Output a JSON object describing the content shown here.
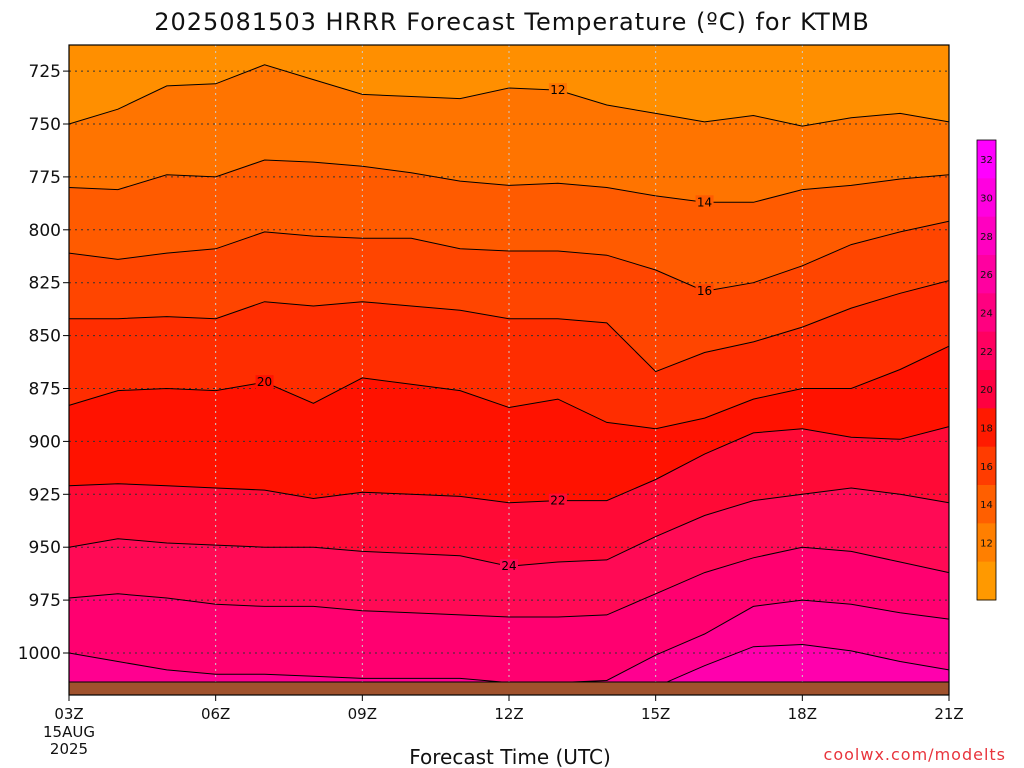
{
  "chart_data": {
    "type": "heatmap",
    "title": "2025081503 HRRR Forecast Temperature (ºC) for KTMB",
    "xlabel": "Forecast Time (UTC)",
    "ylabel": "",
    "credit": "coolwx.com/modelts",
    "x_ticks": [
      "03Z",
      "06Z",
      "09Z",
      "12Z",
      "15Z",
      "18Z",
      "21Z"
    ],
    "x_tick_hours": [
      3,
      6,
      9,
      12,
      15,
      18,
      21
    ],
    "x_date_lines": [
      "15AUG",
      "2025"
    ],
    "x_range_hours": [
      3,
      21
    ],
    "y_ticks": [
      725,
      750,
      775,
      800,
      825,
      850,
      875,
      900,
      925,
      950,
      975,
      1000
    ],
    "y_range_hpa": [
      712,
      1020
    ],
    "y_reversed": true,
    "grid": true,
    "colorbar": {
      "labels": [
        32,
        30,
        28,
        26,
        24,
        22,
        20,
        18,
        16,
        14,
        12
      ],
      "colors": [
        "#ff00ff",
        "#ff00e0",
        "#ff00c0",
        "#ff00a0",
        "#ff0080",
        "#ff0060",
        "#ff0040",
        "#ff1a00",
        "#ff3c00",
        "#ff5f00",
        "#ff7f00",
        "#ff9900"
      ]
    },
    "band_colors": [
      "#ff8f00",
      "#ff7400",
      "#ff5b00",
      "#ff4500",
      "#ff2d00",
      "#ff1200",
      "#ff0a36",
      "#ff0a55",
      "#ff0070",
      "#ff0090",
      "#ff00ad",
      "#ff00cc",
      "#ff00ff"
    ],
    "contour_levels": [
      11,
      12,
      14,
      16,
      18,
      20,
      22,
      24,
      26,
      28,
      30,
      32
    ],
    "isotherms": [
      {
        "level": 12,
        "p": [
          750,
          743,
          732,
          731,
          722,
          729,
          736,
          737,
          738,
          733,
          734,
          741,
          745,
          749,
          746,
          751,
          747,
          745,
          749
        ],
        "label_hour": 13
      },
      {
        "level": 14,
        "p": [
          780,
          781,
          774,
          775,
          767,
          768,
          770,
          773,
          777,
          779,
          778,
          780,
          784,
          787,
          787,
          781,
          779,
          776,
          774
        ],
        "label_hour": 16
      },
      {
        "level": 16,
        "p": [
          811,
          814,
          811,
          809,
          801,
          803,
          804,
          804,
          809,
          810,
          810,
          812,
          819,
          829,
          825,
          817,
          807,
          801,
          796
        ],
        "label_hour": 16
      },
      {
        "level": 18,
        "p": [
          842,
          842,
          841,
          842,
          834,
          836,
          834,
          836,
          838,
          842,
          842,
          844,
          867,
          858,
          853,
          846,
          837,
          830,
          824
        ],
        "label_hour": null
      },
      {
        "level": 20,
        "p": [
          883,
          876,
          875,
          876,
          872,
          882,
          870,
          873,
          876,
          884,
          880,
          891,
          894,
          889,
          880,
          875,
          875,
          866,
          855
        ],
        "label_hour": 7
      },
      {
        "level": 22,
        "p": [
          921,
          920,
          921,
          922,
          923,
          927,
          924,
          925,
          926,
          929,
          928,
          928,
          918,
          906,
          896,
          894,
          898,
          899,
          893
        ],
        "label_hour": 13
      },
      {
        "level": 24,
        "p": [
          950,
          946,
          948,
          949,
          950,
          950,
          952,
          953,
          954,
          959,
          957,
          956,
          945,
          935,
          928,
          925,
          922,
          925,
          929
        ],
        "label_hour": 12
      },
      {
        "level": 26,
        "p": [
          974,
          972,
          974,
          977,
          978,
          978,
          980,
          981,
          982,
          983,
          983,
          982,
          972,
          962,
          955,
          950,
          952,
          957,
          962
        ],
        "label_hour": null
      },
      {
        "level": 28,
        "p": [
          1000,
          1004,
          1008,
          1010,
          1010,
          1011,
          1012,
          1012,
          1012,
          1014,
          1014,
          1013,
          1001,
          991,
          978,
          975,
          977,
          981,
          984
        ],
        "label_hour": null
      },
      {
        "level": 30,
        "p": [
          1015,
          1018,
          1020,
          1020,
          1020,
          1020,
          1020,
          1020,
          1020,
          1020,
          1020,
          1020,
          1016,
          1006,
          997,
          996,
          999,
          1004,
          1008
        ],
        "label_hour": null
      }
    ]
  }
}
